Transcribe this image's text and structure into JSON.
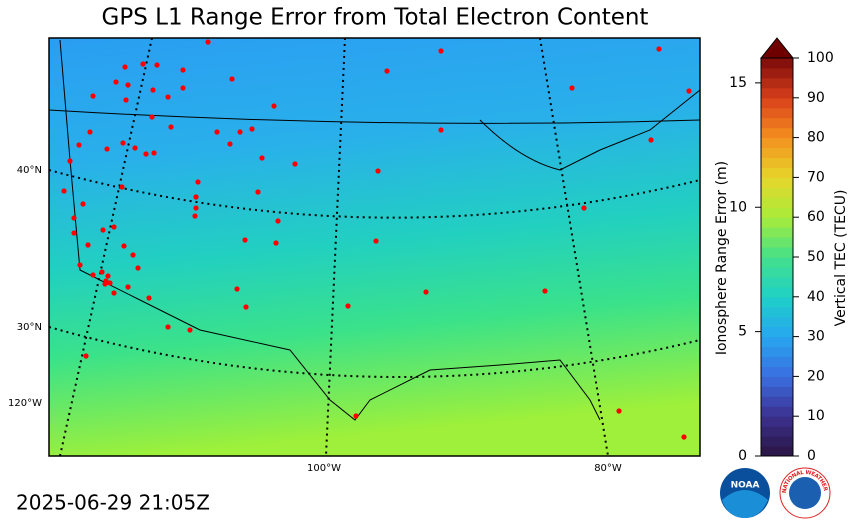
{
  "map": {
    "title": "GPS L1 Range Error from Total Electron Content",
    "timestamp": "2025-06-29 21:05Z",
    "lat_labels": [
      "40°N",
      "30°N",
      "120°W"
    ],
    "lon_labels": [
      "100°W",
      "80°W"
    ]
  },
  "colorbar": {
    "left_label": "Ionosphere Range Error (m)",
    "right_label": "Vertical TEC (TECU)",
    "ylim": [
      0,
      16
    ],
    "yticks": [
      0,
      5,
      10,
      15
    ],
    "y2lim": [
      0,
      100
    ],
    "y2ticks": [
      0,
      10,
      20,
      30,
      40,
      50,
      60,
      70,
      80,
      90,
      100
    ]
  },
  "logos": {
    "noaa": "NOAA",
    "nws": "NATIONAL WEATHER SERVICE"
  }
}
